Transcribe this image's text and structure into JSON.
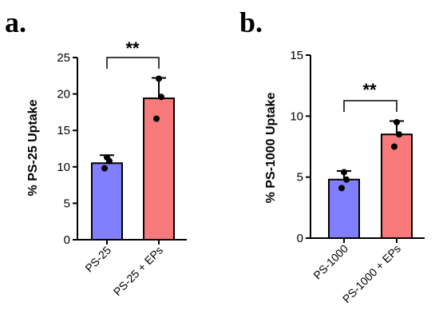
{
  "colors": {
    "bar_1": "#8080ff",
    "bar_2": "#f87a7a",
    "axis": "#000000"
  },
  "chart_data": [
    {
      "type": "bar",
      "panel_label": "a.",
      "ylabel": "%  PS-25 Uptake",
      "ylim": [
        0,
        25
      ],
      "yticks": [
        0,
        5,
        10,
        15,
        20,
        25
      ],
      "categories": [
        "PS-25",
        "PS-25 + EPs"
      ],
      "values": [
        10.5,
        19.4
      ],
      "errors": [
        1.1,
        2.8
      ],
      "points": [
        [
          11.3,
          10.8,
          9.8
        ],
        [
          22.1,
          19.6,
          16.6
        ]
      ],
      "significance": "**"
    },
    {
      "type": "bar",
      "panel_label": "b.",
      "ylabel": "% PS-1000 Uptake",
      "ylim": [
        0,
        15
      ],
      "yticks": [
        0,
        5,
        10,
        15
      ],
      "categories": [
        "PS-1000",
        "PS-1000 + EPs"
      ],
      "values": [
        4.8,
        8.5
      ],
      "errors": [
        0.7,
        1.1
      ],
      "points": [
        [
          5.4,
          4.8,
          4.1
        ],
        [
          9.5,
          8.5,
          7.5
        ]
      ],
      "significance": "**"
    }
  ]
}
